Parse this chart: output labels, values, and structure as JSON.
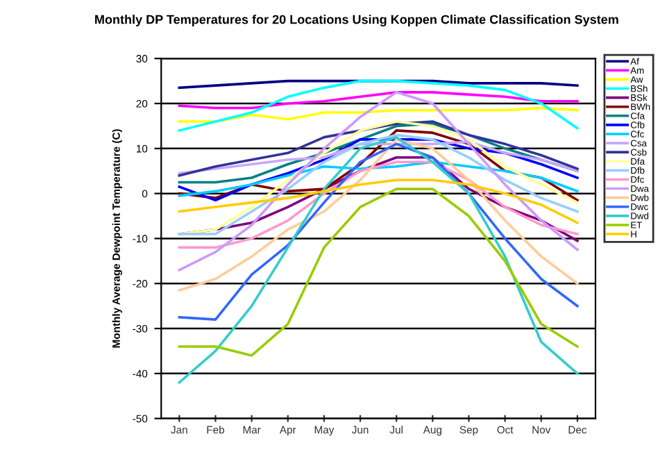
{
  "chart_data": {
    "type": "line",
    "title": "Monthly DP Temperatures for 20 Locations Using Koppen Climate Classification System",
    "ylabel": "Monthly Average Dewpoint Temperature (C)",
    "categories": [
      "Jan",
      "Feb",
      "Mar",
      "Apr",
      "May",
      "Jun",
      "Jul",
      "Aug",
      "Sep",
      "Oct",
      "Nov",
      "Dec"
    ],
    "ylim": [
      -50,
      30
    ],
    "yticks": [
      -50,
      -40,
      -30,
      -20,
      -10,
      0,
      10,
      20,
      30
    ],
    "grid": "y",
    "legend": "right",
    "marker": "none",
    "line_style": "solid",
    "series": [
      {
        "name": "Af",
        "color": "#000080",
        "values": [
          23.5,
          24,
          24.5,
          25,
          25,
          25,
          25,
          25,
          24.5,
          24.5,
          24.5,
          24
        ]
      },
      {
        "name": "Am",
        "color": "#ff00ff",
        "values": [
          19.5,
          19,
          19,
          20,
          20.5,
          21.5,
          22.5,
          22.5,
          22,
          21.5,
          20.5,
          20.5
        ]
      },
      {
        "name": "Aw",
        "color": "#ffff00",
        "values": [
          16,
          16,
          17.5,
          16.5,
          18,
          18,
          18.5,
          18.5,
          18.5,
          18.5,
          19,
          18.5
        ]
      },
      {
        "name": "BSh",
        "color": "#00ffff",
        "values": [
          14,
          16,
          18,
          21.5,
          23.5,
          25,
          25,
          24.5,
          24,
          23,
          20,
          14.5
        ]
      },
      {
        "name": "BSk",
        "color": "#800080",
        "values": [
          -9,
          -8,
          -6.5,
          -3,
          1,
          5,
          8,
          8,
          1,
          -3,
          -6,
          -10.5
        ]
      },
      {
        "name": "BWh",
        "color": "#800000",
        "values": [
          0,
          -1,
          2,
          0.5,
          1,
          6.5,
          14,
          13.5,
          11,
          5,
          3.5,
          -1.5
        ]
      },
      {
        "name": "Cfa",
        "color": "#008080",
        "values": [
          2.5,
          2.5,
          3.5,
          6.5,
          9,
          12,
          15,
          15.5,
          13,
          10,
          7.5,
          5
        ]
      },
      {
        "name": "Cfb",
        "color": "#0000ff",
        "values": [
          1.5,
          -1.5,
          2,
          4.5,
          7.5,
          12,
          12,
          12,
          10,
          9,
          6.5,
          3.5
        ]
      },
      {
        "name": "Cfc",
        "color": "#00ccff",
        "values": [
          -0.5,
          0.5,
          2,
          4,
          6,
          5.5,
          6,
          7,
          6,
          5,
          3.5,
          0.5
        ]
      },
      {
        "name": "Csa",
        "color": "#c8a8f8",
        "values": [
          4.5,
          5.5,
          6.5,
          7.5,
          8,
          11,
          11,
          11,
          11.5,
          9,
          7.5,
          5
        ]
      },
      {
        "name": "Csb",
        "color": "#333399",
        "values": [
          4,
          6,
          7.5,
          9,
          12.5,
          14,
          15.5,
          16,
          13,
          11,
          8.5,
          5.5
        ]
      },
      {
        "name": "Dfa",
        "color": "#ffff99",
        "values": [
          -9,
          -8,
          -3,
          3,
          9,
          14,
          16,
          15,
          12,
          6,
          2,
          -2
        ]
      },
      {
        "name": "Dfb",
        "color": "#99ccff",
        "values": [
          -9,
          -9,
          -4,
          1,
          7,
          11,
          13,
          12,
          8,
          3,
          -1,
          -4
        ]
      },
      {
        "name": "Dfc",
        "color": "#ff99cc",
        "values": [
          -12,
          -12,
          -10,
          -6,
          0,
          5,
          7,
          7,
          3,
          -3,
          -7,
          -9
        ]
      },
      {
        "name": "Dwa",
        "color": "#cc99ff",
        "values": [
          -17,
          -13,
          -7,
          2,
          10,
          17,
          22.5,
          20,
          11,
          2,
          -6,
          -12.5
        ]
      },
      {
        "name": "Dwb",
        "color": "#ffcc99",
        "values": [
          -21.5,
          -19,
          -14,
          -8,
          -4,
          3,
          12,
          10,
          3,
          -6,
          -14,
          -20
        ]
      },
      {
        "name": "Dwc",
        "color": "#3366ff",
        "values": [
          -27.5,
          -28,
          -18,
          -11.5,
          -2,
          7,
          11,
          8,
          0,
          -10,
          -19,
          -25
        ]
      },
      {
        "name": "Dwd",
        "color": "#33cccc",
        "values": [
          -42,
          -35,
          -25,
          -12,
          1,
          10,
          12.5,
          7,
          0,
          -14,
          -33,
          -40
        ]
      },
      {
        "name": "ET",
        "color": "#99cc00",
        "values": [
          -34,
          -34,
          -36,
          -29,
          -12,
          -3,
          1,
          1,
          -5,
          -15,
          -29,
          -34
        ]
      },
      {
        "name": "H",
        "color": "#ffcc00",
        "values": [
          -4,
          -3,
          -2,
          -1,
          0.5,
          2,
          3,
          3,
          2,
          0,
          -2.5,
          -6.5
        ]
      }
    ]
  }
}
